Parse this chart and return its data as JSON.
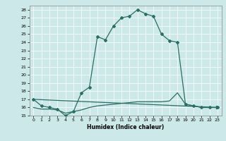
{
  "xlabel": "Humidex (Indice chaleur)",
  "xlim": [
    -0.5,
    23.5
  ],
  "ylim": [
    15,
    28.5
  ],
  "xticks": [
    0,
    1,
    2,
    3,
    4,
    5,
    6,
    7,
    8,
    9,
    10,
    11,
    12,
    13,
    14,
    15,
    16,
    17,
    18,
    19,
    20,
    21,
    22,
    23
  ],
  "yticks": [
    15,
    16,
    17,
    18,
    19,
    20,
    21,
    22,
    23,
    24,
    25,
    26,
    27,
    28
  ],
  "bg_color": "#cce8e8",
  "line_color": "#2a6e65",
  "line1_x": [
    0,
    1,
    2,
    3,
    4,
    5,
    6,
    7,
    8,
    9,
    10,
    11,
    12,
    13,
    14,
    15,
    16,
    17,
    18,
    19,
    20,
    21,
    22,
    23
  ],
  "line1_y": [
    17.0,
    16.2,
    16.0,
    15.8,
    15.0,
    15.5,
    17.8,
    18.5,
    24.7,
    24.3,
    26.0,
    27.0,
    27.2,
    28.0,
    27.5,
    27.2,
    25.0,
    24.2,
    24.0,
    16.4,
    16.2,
    16.0,
    16.0,
    16.0
  ],
  "line2_x": [
    0,
    23
  ],
  "line2_y": [
    17.0,
    16.0
  ],
  "line3_x": [
    0,
    1,
    2,
    3,
    4,
    5,
    6,
    7,
    8,
    9,
    10,
    11,
    12,
    13,
    14,
    15,
    16,
    17,
    18,
    19,
    20,
    21,
    22,
    23
  ],
  "line3_y": [
    16.0,
    15.8,
    15.8,
    15.7,
    15.3,
    15.5,
    15.7,
    16.0,
    16.2,
    16.3,
    16.4,
    16.5,
    16.6,
    16.7,
    16.7,
    16.7,
    16.7,
    16.8,
    17.8,
    16.4,
    16.2,
    16.0,
    16.0,
    16.0
  ]
}
